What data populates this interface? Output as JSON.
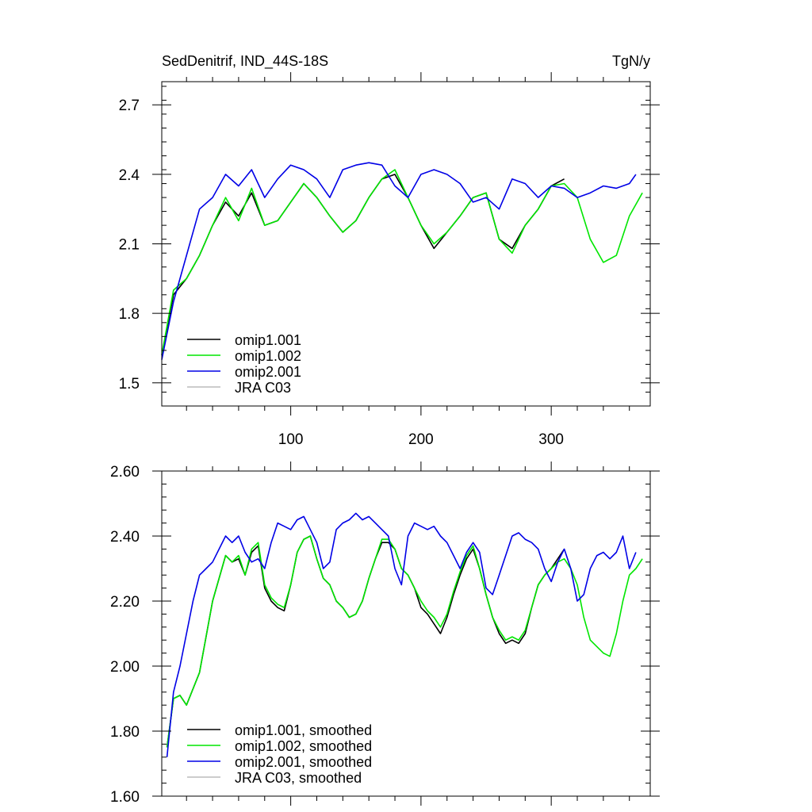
{
  "colors": {
    "omip1_001": "#000000",
    "omip1_002": "#00e600",
    "omip2_001": "#0000e6",
    "jra_c03": "#bbbbbb"
  },
  "chart_data": [
    {
      "type": "line",
      "title": "SedDenitrif, IND_44S-18S",
      "units": "TgN/y",
      "xlim": [
        1,
        376
      ],
      "ylim": [
        1.4,
        2.8
      ],
      "x_ticks": [
        100,
        200,
        300
      ],
      "x_tick_labels": [
        "100",
        "200",
        "300"
      ],
      "y_ticks": [
        1.5,
        1.8,
        2.1,
        2.4,
        2.7
      ],
      "y_tick_labels": [
        "1.5",
        "1.8",
        "2.1",
        "2.4",
        "2.7"
      ],
      "legend_position": "bottom-left",
      "series": [
        {
          "name": "omip1.001",
          "color": "#000000",
          "x": [
            1,
            10,
            20,
            30,
            40,
            50,
            60,
            70,
            80,
            90,
            100,
            110,
            120,
            130,
            140,
            150,
            160,
            170,
            180,
            190,
            200,
            210,
            220,
            230,
            240,
            250,
            260,
            270,
            280,
            290,
            300,
            310
          ],
          "values": [
            1.62,
            1.88,
            1.95,
            2.05,
            2.18,
            2.28,
            2.22,
            2.32,
            2.18,
            2.2,
            2.28,
            2.36,
            2.3,
            2.22,
            2.15,
            2.2,
            2.3,
            2.38,
            2.4,
            2.3,
            2.18,
            2.08,
            2.15,
            2.22,
            2.3,
            2.32,
            2.12,
            2.08,
            2.18,
            2.25,
            2.35,
            2.38
          ]
        },
        {
          "name": "omip1.002",
          "color": "#00e600",
          "x": [
            1,
            10,
            20,
            30,
            40,
            50,
            60,
            70,
            80,
            90,
            100,
            110,
            120,
            130,
            140,
            150,
            160,
            170,
            180,
            190,
            200,
            210,
            220,
            230,
            240,
            250,
            260,
            270,
            280,
            290,
            300,
            310,
            320,
            330,
            340,
            350,
            360,
            370
          ],
          "values": [
            1.62,
            1.9,
            1.95,
            2.05,
            2.18,
            2.3,
            2.2,
            2.34,
            2.18,
            2.2,
            2.28,
            2.36,
            2.3,
            2.22,
            2.15,
            2.2,
            2.3,
            2.38,
            2.42,
            2.3,
            2.18,
            2.1,
            2.15,
            2.22,
            2.3,
            2.32,
            2.12,
            2.06,
            2.18,
            2.25,
            2.35,
            2.36,
            2.3,
            2.12,
            2.02,
            2.05,
            2.22,
            2.32
          ]
        },
        {
          "name": "omip2.001",
          "color": "#0000e6",
          "x": [
            1,
            10,
            20,
            30,
            40,
            50,
            60,
            70,
            80,
            90,
            100,
            110,
            120,
            130,
            140,
            150,
            160,
            170,
            180,
            190,
            200,
            210,
            220,
            230,
            240,
            250,
            260,
            270,
            280,
            290,
            300,
            310,
            320,
            330,
            340,
            350,
            360,
            365
          ],
          "values": [
            1.6,
            1.85,
            2.05,
            2.25,
            2.3,
            2.4,
            2.35,
            2.42,
            2.3,
            2.38,
            2.44,
            2.42,
            2.38,
            2.3,
            2.42,
            2.44,
            2.45,
            2.44,
            2.35,
            2.3,
            2.4,
            2.42,
            2.4,
            2.36,
            2.28,
            2.3,
            2.25,
            2.38,
            2.36,
            2.3,
            2.35,
            2.34,
            2.3,
            2.32,
            2.35,
            2.34,
            2.36,
            2.4
          ]
        },
        {
          "name": "JRA C03",
          "color": "#bbbbbb",
          "x": [],
          "values": []
        }
      ]
    },
    {
      "type": "line",
      "title": "",
      "units": "",
      "xlim": [
        1,
        376
      ],
      "ylim": [
        1.6,
        2.6
      ],
      "x_ticks": [
        100,
        200,
        300
      ],
      "x_tick_labels": [],
      "y_ticks": [
        1.6,
        1.8,
        2.0,
        2.2,
        2.4,
        2.6
      ],
      "y_tick_labels": [
        "1.60",
        "1.80",
        "2.00",
        "2.20",
        "2.40",
        "2.60"
      ],
      "legend_position": "bottom-left",
      "series": [
        {
          "name": "omip1.001, smoothed",
          "color": "#000000",
          "x": [
            5,
            10,
            15,
            20,
            30,
            40,
            50,
            55,
            60,
            65,
            70,
            75,
            80,
            85,
            90,
            95,
            100,
            105,
            110,
            115,
            120,
            125,
            130,
            135,
            140,
            145,
            150,
            155,
            160,
            165,
            170,
            175,
            180,
            185,
            190,
            195,
            200,
            205,
            210,
            215,
            220,
            225,
            230,
            235,
            240,
            245,
            250,
            255,
            260,
            265,
            270,
            275,
            280,
            285,
            290,
            295,
            300,
            305,
            310
          ],
          "values": [
            1.75,
            1.9,
            1.91,
            1.88,
            1.98,
            2.2,
            2.34,
            2.32,
            2.33,
            2.28,
            2.35,
            2.37,
            2.24,
            2.2,
            2.18,
            2.17,
            2.25,
            2.35,
            2.39,
            2.4,
            2.33,
            2.27,
            2.25,
            2.2,
            2.18,
            2.15,
            2.16,
            2.2,
            2.27,
            2.33,
            2.38,
            2.38,
            2.36,
            2.3,
            2.28,
            2.24,
            2.18,
            2.16,
            2.13,
            2.1,
            2.15,
            2.22,
            2.28,
            2.33,
            2.36,
            2.3,
            2.22,
            2.15,
            2.1,
            2.07,
            2.08,
            2.07,
            2.1,
            2.18,
            2.25,
            2.28,
            2.3,
            2.33,
            2.36
          ]
        },
        {
          "name": "omip1.002, smoothed",
          "color": "#00e600",
          "x": [
            5,
            10,
            15,
            20,
            30,
            40,
            50,
            55,
            60,
            65,
            70,
            75,
            80,
            85,
            90,
            95,
            100,
            105,
            110,
            115,
            120,
            125,
            130,
            135,
            140,
            145,
            150,
            155,
            160,
            165,
            170,
            175,
            180,
            185,
            190,
            195,
            200,
            205,
            210,
            215,
            220,
            225,
            230,
            235,
            240,
            245,
            250,
            255,
            260,
            265,
            270,
            275,
            280,
            285,
            290,
            295,
            300,
            305,
            310,
            315,
            320,
            325,
            330,
            335,
            340,
            345,
            350,
            355,
            360,
            365,
            370
          ],
          "values": [
            1.75,
            1.9,
            1.91,
            1.88,
            1.98,
            2.2,
            2.34,
            2.32,
            2.34,
            2.28,
            2.36,
            2.38,
            2.25,
            2.21,
            2.19,
            2.18,
            2.25,
            2.35,
            2.39,
            2.4,
            2.33,
            2.27,
            2.25,
            2.2,
            2.18,
            2.15,
            2.16,
            2.2,
            2.27,
            2.33,
            2.39,
            2.39,
            2.36,
            2.3,
            2.28,
            2.24,
            2.2,
            2.17,
            2.15,
            2.12,
            2.16,
            2.23,
            2.29,
            2.34,
            2.37,
            2.3,
            2.22,
            2.15,
            2.11,
            2.08,
            2.09,
            2.08,
            2.11,
            2.18,
            2.25,
            2.28,
            2.3,
            2.32,
            2.33,
            2.3,
            2.25,
            2.15,
            2.08,
            2.06,
            2.04,
            2.03,
            2.1,
            2.2,
            2.28,
            2.3,
            2.33
          ]
        },
        {
          "name": "omip2.001, smoothed",
          "color": "#0000e6",
          "x": [
            5,
            10,
            15,
            20,
            25,
            30,
            35,
            40,
            45,
            50,
            55,
            60,
            65,
            70,
            75,
            80,
            85,
            90,
            95,
            100,
            105,
            110,
            115,
            120,
            125,
            130,
            135,
            140,
            145,
            150,
            155,
            160,
            165,
            170,
            175,
            180,
            185,
            190,
            195,
            200,
            205,
            210,
            215,
            220,
            225,
            230,
            235,
            240,
            245,
            250,
            255,
            260,
            265,
            270,
            275,
            280,
            285,
            290,
            295,
            300,
            305,
            310,
            315,
            320,
            325,
            330,
            335,
            340,
            345,
            350,
            355,
            360,
            365
          ],
          "values": [
            1.72,
            1.92,
            2.0,
            2.1,
            2.2,
            2.28,
            2.3,
            2.32,
            2.36,
            2.4,
            2.38,
            2.4,
            2.35,
            2.32,
            2.33,
            2.3,
            2.38,
            2.44,
            2.43,
            2.42,
            2.45,
            2.46,
            2.42,
            2.38,
            2.3,
            2.32,
            2.42,
            2.44,
            2.45,
            2.47,
            2.45,
            2.46,
            2.44,
            2.42,
            2.4,
            2.3,
            2.25,
            2.4,
            2.44,
            2.43,
            2.42,
            2.43,
            2.4,
            2.38,
            2.34,
            2.3,
            2.35,
            2.38,
            2.35,
            2.24,
            2.22,
            2.28,
            2.34,
            2.4,
            2.41,
            2.39,
            2.38,
            2.36,
            2.3,
            2.26,
            2.32,
            2.36,
            2.3,
            2.2,
            2.22,
            2.3,
            2.34,
            2.35,
            2.33,
            2.35,
            2.4,
            2.3,
            2.35
          ]
        },
        {
          "name": "JRA C03, smoothed",
          "color": "#bbbbbb",
          "x": [],
          "values": []
        }
      ]
    }
  ]
}
